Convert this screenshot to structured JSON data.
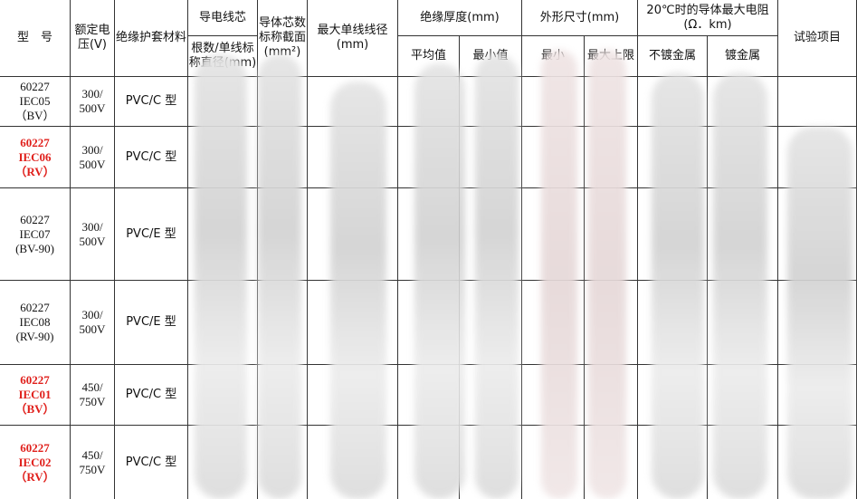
{
  "header": {
    "model": "型　号",
    "voltage": "额定电压(V)",
    "material": "绝缘护套材料",
    "conductor": "导电线芯",
    "conductor_sub": "根数/单线标称直径(mm)",
    "section": "导体芯数标称截面(mm²)",
    "max_wire": "最大单线线径(mm)",
    "insulation": "绝缘厚度(mm)",
    "insulation_avg": "平均值",
    "insulation_min": "最小值",
    "outer": "外形尺寸(mm)",
    "outer_min": "最小",
    "outer_max": "最大上限",
    "resistance": "20℃时的导体最大电阻(Ω．km)",
    "res_plain": "不镀金属",
    "res_coated": "镀金属",
    "tests": "试验项目"
  },
  "rows": [
    {
      "model": [
        "60227",
        "IEC05",
        "（BV）"
      ],
      "voltage": [
        "300/",
        "500V"
      ],
      "material": "PVC/C 型",
      "highlight": false
    },
    {
      "model": [
        "60227",
        "IEC06",
        "（RV）"
      ],
      "voltage": [
        "300/",
        "500V"
      ],
      "material": "PVC/C 型",
      "highlight": true
    },
    {
      "model": [
        "60227",
        "IEC07",
        "(BV-90)"
      ],
      "voltage": [
        "300/",
        "500V"
      ],
      "material": "PVC/E 型",
      "highlight": false
    },
    {
      "model": [
        "60227",
        "IEC08",
        "(RV-90)"
      ],
      "voltage": [
        "300/",
        "500V"
      ],
      "material": "PVC/E 型",
      "highlight": false
    },
    {
      "model": [
        "60227",
        "IEC01",
        "（BV）"
      ],
      "voltage": [
        "450/",
        "750V"
      ],
      "material": "PVC/C 型",
      "highlight": true
    },
    {
      "model": [
        "60227",
        "IEC02",
        "（RV）"
      ],
      "voltage": [
        "450/",
        "750V"
      ],
      "material": "PVC/C 型",
      "highlight": true
    }
  ]
}
